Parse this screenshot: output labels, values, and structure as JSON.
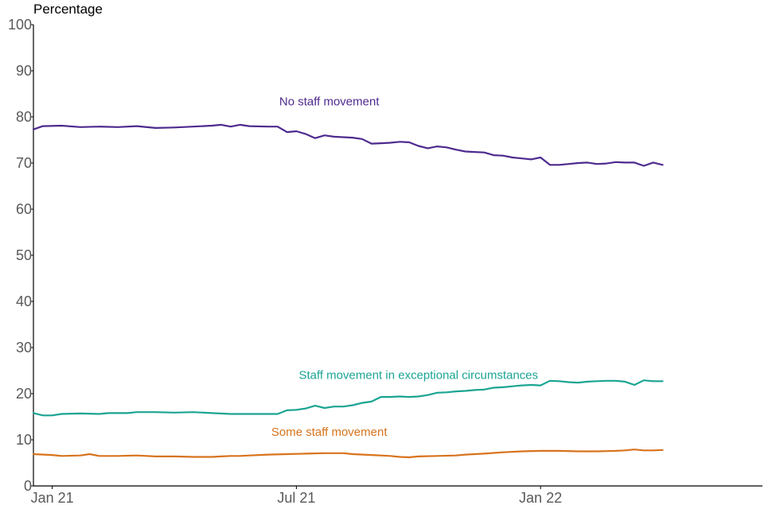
{
  "chart_data": {
    "type": "line",
    "title": "",
    "ylabel": "Percentage",
    "xlabel": "",
    "ylim": [
      0,
      100
    ],
    "yticks": [
      0,
      10,
      20,
      30,
      40,
      50,
      60,
      70,
      80,
      90,
      100
    ],
    "xlim": [
      0,
      80
    ],
    "xticks": [
      {
        "label": "Jan 21",
        "x": 2
      },
      {
        "label": "Jul 21",
        "x": 28
      },
      {
        "label": "Jan 22",
        "x": 54
      }
    ],
    "grid": false,
    "series": [
      {
        "name": "No staff movement",
        "color": "#4e2a8e",
        "label_x": 31.5,
        "label_y": 82.5,
        "points": [
          [
            0,
            77.3
          ],
          [
            1,
            78.0
          ],
          [
            3,
            78.1
          ],
          [
            5,
            77.8
          ],
          [
            7,
            77.9
          ],
          [
            9,
            77.8
          ],
          [
            11,
            78.0
          ],
          [
            13,
            77.6
          ],
          [
            15,
            77.7
          ],
          [
            17,
            77.9
          ],
          [
            19,
            78.1
          ],
          [
            20,
            78.3
          ],
          [
            21,
            77.9
          ],
          [
            22,
            78.3
          ],
          [
            23,
            78.0
          ],
          [
            25,
            77.9
          ],
          [
            26,
            77.9
          ],
          [
            27,
            76.7
          ],
          [
            28,
            76.9
          ],
          [
            29,
            76.3
          ],
          [
            30,
            75.4
          ],
          [
            31,
            76.0
          ],
          [
            32,
            75.7
          ],
          [
            34,
            75.5
          ],
          [
            35,
            75.2
          ],
          [
            36,
            74.2
          ],
          [
            37,
            74.3
          ],
          [
            38,
            74.4
          ],
          [
            39,
            74.6
          ],
          [
            40,
            74.5
          ],
          [
            41,
            73.7
          ],
          [
            42,
            73.2
          ],
          [
            43,
            73.6
          ],
          [
            44,
            73.4
          ],
          [
            45,
            72.9
          ],
          [
            46,
            72.5
          ],
          [
            47,
            72.4
          ],
          [
            48,
            72.3
          ],
          [
            49,
            71.7
          ],
          [
            50,
            71.6
          ],
          [
            51,
            71.2
          ],
          [
            52,
            71.0
          ],
          [
            53,
            70.8
          ],
          [
            54,
            71.2
          ],
          [
            55,
            69.6
          ],
          [
            56,
            69.6
          ],
          [
            57,
            69.8
          ],
          [
            58,
            70.0
          ],
          [
            59,
            70.1
          ],
          [
            60,
            69.8
          ],
          [
            61,
            69.9
          ],
          [
            62,
            70.2
          ],
          [
            63,
            70.1
          ],
          [
            64,
            70.1
          ],
          [
            65,
            69.4
          ],
          [
            66,
            70.1
          ],
          [
            67,
            69.6
          ]
        ]
      },
      {
        "name": "Staff movement in exceptional circumstances",
        "color": "#1ba493",
        "label_x": 41,
        "label_y": 23.2,
        "points": [
          [
            0,
            15.8
          ],
          [
            1,
            15.3
          ],
          [
            2,
            15.3
          ],
          [
            3,
            15.6
          ],
          [
            5,
            15.7
          ],
          [
            7,
            15.6
          ],
          [
            8,
            15.8
          ],
          [
            10,
            15.8
          ],
          [
            11,
            16.0
          ],
          [
            13,
            16.0
          ],
          [
            15,
            15.9
          ],
          [
            17,
            16.0
          ],
          [
            19,
            15.8
          ],
          [
            21,
            15.6
          ],
          [
            23,
            15.6
          ],
          [
            25,
            15.6
          ],
          [
            26,
            15.6
          ],
          [
            27,
            16.4
          ],
          [
            28,
            16.5
          ],
          [
            29,
            16.8
          ],
          [
            30,
            17.4
          ],
          [
            31,
            16.9
          ],
          [
            32,
            17.2
          ],
          [
            33,
            17.2
          ],
          [
            34,
            17.5
          ],
          [
            35,
            18.0
          ],
          [
            36,
            18.3
          ],
          [
            37,
            19.3
          ],
          [
            38,
            19.3
          ],
          [
            39,
            19.4
          ],
          [
            40,
            19.3
          ],
          [
            41,
            19.4
          ],
          [
            42,
            19.7
          ],
          [
            43,
            20.2
          ],
          [
            44,
            20.3
          ],
          [
            45,
            20.5
          ],
          [
            46,
            20.6
          ],
          [
            47,
            20.8
          ],
          [
            48,
            20.9
          ],
          [
            49,
            21.3
          ],
          [
            50,
            21.4
          ],
          [
            51,
            21.6
          ],
          [
            52,
            21.8
          ],
          [
            53,
            21.9
          ],
          [
            54,
            21.8
          ],
          [
            55,
            22.8
          ],
          [
            56,
            22.7
          ],
          [
            57,
            22.5
          ],
          [
            58,
            22.4
          ],
          [
            59,
            22.6
          ],
          [
            60,
            22.7
          ],
          [
            61,
            22.8
          ],
          [
            62,
            22.8
          ],
          [
            63,
            22.6
          ],
          [
            64,
            21.9
          ],
          [
            65,
            22.9
          ],
          [
            66,
            22.7
          ],
          [
            67,
            22.7
          ]
        ]
      },
      {
        "name": "Some staff movement",
        "color": "#d8731c",
        "label_x": 31.5,
        "label_y": 10.9,
        "points": [
          [
            0,
            6.9
          ],
          [
            2,
            6.7
          ],
          [
            3,
            6.5
          ],
          [
            5,
            6.6
          ],
          [
            6,
            6.9
          ],
          [
            7,
            6.5
          ],
          [
            9,
            6.5
          ],
          [
            11,
            6.6
          ],
          [
            13,
            6.4
          ],
          [
            15,
            6.4
          ],
          [
            17,
            6.3
          ],
          [
            19,
            6.3
          ],
          [
            20,
            6.4
          ],
          [
            21,
            6.5
          ],
          [
            22,
            6.5
          ],
          [
            23,
            6.6
          ],
          [
            25,
            6.8
          ],
          [
            27,
            6.9
          ],
          [
            29,
            7.0
          ],
          [
            31,
            7.1
          ],
          [
            33,
            7.1
          ],
          [
            34,
            6.9
          ],
          [
            36,
            6.7
          ],
          [
            38,
            6.5
          ],
          [
            39,
            6.3
          ],
          [
            40,
            6.2
          ],
          [
            41,
            6.4
          ],
          [
            43,
            6.5
          ],
          [
            45,
            6.6
          ],
          [
            46,
            6.8
          ],
          [
            48,
            7.0
          ],
          [
            50,
            7.3
          ],
          [
            52,
            7.5
          ],
          [
            54,
            7.6
          ],
          [
            56,
            7.6
          ],
          [
            58,
            7.5
          ],
          [
            60,
            7.5
          ],
          [
            62,
            7.6
          ],
          [
            63,
            7.7
          ],
          [
            64,
            7.9
          ],
          [
            65,
            7.7
          ],
          [
            66,
            7.7
          ],
          [
            67,
            7.8
          ]
        ]
      }
    ]
  }
}
